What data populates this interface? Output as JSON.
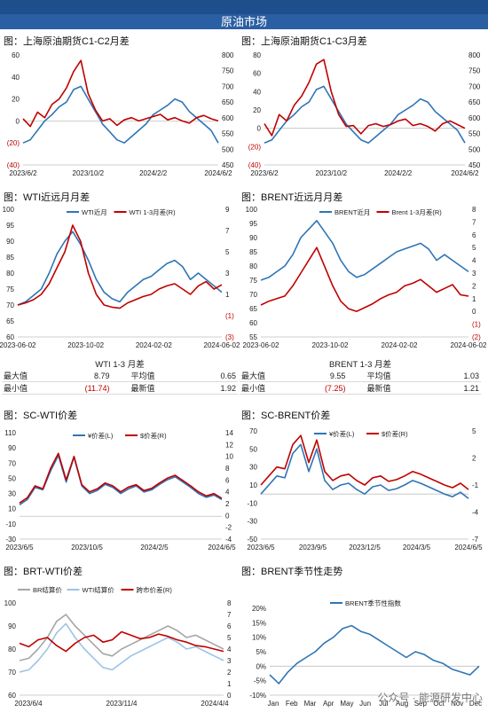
{
  "header": {
    "title": "原油市场"
  },
  "watermark": "公众号 · 能源研发中心",
  "panels": [
    {
      "title": "图：上海原油期货C1-C2月差"
    },
    {
      "title": "图：上海原油期货C1-C3月差"
    },
    {
      "title": "图：WTI近远月月差"
    },
    {
      "title": "图：BRENT近远月月差"
    },
    {
      "title": "图：SC-WTI价差"
    },
    {
      "title": "图：SC-BRENT价差"
    },
    {
      "title": "图：BRT-WTI价差"
    },
    {
      "title": "图：BRENT季节性走势"
    }
  ],
  "stats": [
    {
      "caption": "WTI 1-3 月差",
      "labels": [
        "最大值",
        "平均值",
        "最小值",
        "最新值"
      ],
      "values": [
        "8.79",
        "0.65",
        "(11.74)",
        "1.92"
      ]
    },
    {
      "caption": "BRENT 1-3 月差",
      "labels": [
        "最大值",
        "平均值",
        "最小值",
        "最新值"
      ],
      "values": [
        "9.55",
        "1.03",
        "(7.25)",
        "1.21"
      ]
    }
  ],
  "colors": {
    "blue": "#2e75b6",
    "red": "#c00000",
    "gray": "#a6a6a6",
    "lightblue": "#9dc3e6"
  },
  "chart_data": [
    {
      "type": "line",
      "title": "图：上海原油期货C1-C2月差",
      "x_ticks": [
        "2023/6/2",
        "2023/10/2",
        "2024/2/2",
        "2024/6/2"
      ],
      "y_left_ticks": [
        "60",
        "40",
        "20",
        "0",
        "(20)",
        "(40)"
      ],
      "y_left_range": [
        -40,
        60
      ],
      "y_right_ticks": [
        "800",
        "750",
        "700",
        "650",
        "600",
        "550",
        "500",
        "450"
      ],
      "y_right_range": [
        450,
        800
      ],
      "series": [
        {
          "axis": "right",
          "color": "blue",
          "values": [
            520,
            530,
            560,
            590,
            610,
            635,
            650,
            690,
            700,
            660,
            620,
            580,
            555,
            530,
            520,
            540,
            560,
            580,
            610,
            625,
            640,
            660,
            650,
            620,
            600,
            580,
            560,
            520
          ]
        },
        {
          "axis": "left",
          "color": "red",
          "values": [
            2,
            -5,
            8,
            3,
            15,
            20,
            30,
            45,
            55,
            25,
            10,
            0,
            2,
            -4,
            1,
            3,
            0,
            2,
            4,
            6,
            1,
            3,
            0,
            -2,
            3,
            5,
            2,
            0
          ]
        }
      ]
    },
    {
      "type": "line",
      "title": "图：上海原油期货C1-C3月差",
      "x_ticks": [
        "2023/6/2",
        "2023/10/2",
        "2024/2/2",
        "2024/6/2"
      ],
      "y_left_ticks": [
        "80",
        "60",
        "40",
        "20",
        "0",
        "(20)",
        "(40)"
      ],
      "y_left_range": [
        -40,
        80
      ],
      "y_right_ticks": [
        "800",
        "750",
        "700",
        "650",
        "600",
        "550",
        "500",
        "450"
      ],
      "y_right_range": [
        450,
        800
      ],
      "series": [
        {
          "axis": "right",
          "color": "blue",
          "values": [
            520,
            530,
            560,
            590,
            610,
            635,
            650,
            690,
            700,
            660,
            620,
            580,
            555,
            530,
            520,
            540,
            560,
            580,
            610,
            625,
            640,
            660,
            650,
            620,
            600,
            580,
            560,
            520
          ]
        },
        {
          "axis": "left",
          "color": "red",
          "values": [
            5,
            -8,
            15,
            8,
            25,
            35,
            50,
            70,
            75,
            40,
            15,
            2,
            3,
            -6,
            3,
            5,
            2,
            4,
            8,
            10,
            3,
            5,
            2,
            -3,
            5,
            8,
            4,
            0
          ]
        }
      ]
    },
    {
      "type": "line",
      "title": "图：WTI近远月月差",
      "legend": [
        "WTI近月",
        "WTI 1-3月差(R)"
      ],
      "x_ticks": [
        "2023-06-02",
        "2023-10-02",
        "2024-02-02",
        "2024-06-02"
      ],
      "y_left_ticks": [
        "100",
        "95",
        "90",
        "85",
        "80",
        "75",
        "70",
        "65",
        "60"
      ],
      "y_left_range": [
        60,
        100
      ],
      "y_right_ticks": [
        "9",
        "7",
        "5",
        "3",
        "1",
        "(1)",
        "(3)"
      ],
      "y_right_range": [
        -3,
        9
      ],
      "series": [
        {
          "name": "WTI近月",
          "axis": "left",
          "color": "blue",
          "values": [
            70,
            71,
            73,
            75,
            80,
            86,
            90,
            93,
            89,
            84,
            78,
            74,
            72,
            71,
            74,
            76,
            78,
            79,
            81,
            83,
            84,
            82,
            78,
            80,
            78,
            76,
            74
          ]
        },
        {
          "name": "WTI 1-3月差(R)",
          "axis": "right",
          "color": "red",
          "values": [
            0,
            0.2,
            0.5,
            1,
            2,
            3.5,
            5,
            7.5,
            6,
            3,
            1,
            0,
            -0.2,
            -0.3,
            0.2,
            0.5,
            0.8,
            1,
            1.5,
            1.8,
            2,
            1.5,
            1,
            1.8,
            2.2,
            1.5,
            1.9
          ]
        }
      ]
    },
    {
      "type": "line",
      "title": "图：BRENT近远月月差",
      "legend": [
        "BRENT近月",
        "Brent 1-3月差(R)"
      ],
      "x_ticks": [
        "2023-06-02",
        "2023-10-02",
        "2024-02-02",
        "2024-06-02"
      ],
      "y_left_ticks": [
        "100",
        "95",
        "90",
        "85",
        "80",
        "75",
        "70",
        "65",
        "60",
        "55"
      ],
      "y_left_range": [
        55,
        100
      ],
      "y_right_ticks": [
        "8",
        "7",
        "6",
        "5",
        "4",
        "3",
        "2",
        "1",
        "0",
        "(1)",
        "(2)"
      ],
      "y_right_range": [
        -2,
        8
      ],
      "series": [
        {
          "name": "BRENT近月",
          "axis": "left",
          "color": "blue",
          "values": [
            75,
            76,
            78,
            80,
            84,
            90,
            93,
            96,
            92,
            88,
            82,
            78,
            76,
            77,
            79,
            81,
            83,
            85,
            86,
            87,
            88,
            86,
            82,
            84,
            82,
            80,
            78
          ]
        },
        {
          "name": "Brent 1-3月差(R)",
          "axis": "right",
          "color": "red",
          "values": [
            0.5,
            0.8,
            1,
            1.2,
            2,
            3,
            4,
            5,
            3.5,
            2,
            0.8,
            0.2,
            0,
            0.3,
            0.6,
            1,
            1.3,
            1.5,
            2,
            2.2,
            2.5,
            2,
            1.5,
            1.8,
            2.1,
            1.3,
            1.2
          ]
        }
      ]
    },
    {
      "type": "line",
      "title": "图：SC-WTI价差",
      "legend": [
        "¥价差(L)",
        "$价差(R)"
      ],
      "x_ticks": [
        "2023/6/5",
        "2023/10/5",
        "2024/2/5",
        "2024/6/5"
      ],
      "y_left_ticks": [
        "110",
        "90",
        "70",
        "50",
        "30",
        "10",
        "-10",
        "-30"
      ],
      "y_left_range": [
        -30,
        110
      ],
      "y_right_ticks": [
        "14",
        "12",
        "10",
        "8",
        "6",
        "4",
        "2",
        "0",
        "-2",
        "-4"
      ],
      "y_right_range": [
        -4,
        14
      ],
      "series": [
        {
          "name": "¥价差(L)",
          "axis": "left",
          "color": "blue",
          "values": [
            15,
            22,
            38,
            35,
            60,
            80,
            45,
            78,
            40,
            30,
            34,
            42,
            38,
            30,
            36,
            40,
            32,
            35,
            42,
            48,
            52,
            45,
            38,
            30,
            25,
            28,
            22
          ]
        },
        {
          "name": "$价差(R)",
          "axis": "right",
          "color": "red",
          "values": [
            2.1,
            3,
            5,
            4.5,
            8,
            10.5,
            6,
            10,
            5.2,
            4,
            4.5,
            5.5,
            5,
            4,
            4.8,
            5.2,
            4.2,
            4.6,
            5.5,
            6.3,
            6.8,
            5.9,
            5,
            4,
            3.3,
            3.7,
            2.9
          ]
        }
      ]
    },
    {
      "type": "line",
      "title": "图：SC-BRENT价差",
      "legend": [
        "¥价差(L)",
        "$价差(R)"
      ],
      "x_ticks": [
        "2023/6/5",
        "2023/9/5",
        "2023/12/5",
        "2024/3/5",
        "2024/6/5"
      ],
      "y_left_ticks": [
        "70",
        "50",
        "30",
        "10",
        "-10",
        "-30",
        "-50"
      ],
      "y_left_range": [
        -50,
        70
      ],
      "y_right_ticks": [
        "5",
        "2",
        "-1",
        "-4",
        "-7"
      ],
      "y_right_range": [
        -7,
        5
      ],
      "series": [
        {
          "name": "¥价差(L)",
          "axis": "left",
          "color": "blue",
          "values": [
            0,
            10,
            20,
            18,
            45,
            55,
            25,
            50,
            15,
            5,
            10,
            12,
            5,
            0,
            8,
            10,
            4,
            6,
            10,
            15,
            12,
            8,
            4,
            0,
            -3,
            2,
            -5
          ]
        },
        {
          "name": "$价差(R)",
          "axis": "right",
          "color": "red",
          "values": [
            -1,
            0,
            1,
            0.8,
            3.5,
            4.5,
            1.5,
            4,
            0.5,
            -0.5,
            0,
            0.2,
            -0.5,
            -1,
            -0.2,
            0,
            -0.6,
            -0.4,
            0,
            0.5,
            0.2,
            -0.2,
            -0.6,
            -1,
            -1.3,
            -0.8,
            -1.5
          ]
        }
      ]
    },
    {
      "type": "line",
      "title": "图：BRT-WTI价差",
      "legend": [
        "BR结算价",
        "WTI结算价",
        "跨市价差(R)"
      ],
      "x_ticks": [
        "2023/6/4",
        "2023/11/4",
        "2024/4/4"
      ],
      "y_left_ticks": [
        "100",
        "90",
        "80",
        "70",
        "60"
      ],
      "y_left_range": [
        60,
        100
      ],
      "y_right_ticks": [
        "8",
        "7",
        "6",
        "5",
        "4",
        "3",
        "2",
        "1",
        "0"
      ],
      "y_right_range": [
        0,
        8
      ],
      "series": [
        {
          "name": "BR结算价",
          "axis": "left",
          "color": "gray",
          "values": [
            75,
            76,
            80,
            85,
            92,
            95,
            90,
            86,
            82,
            78,
            77,
            80,
            82,
            84,
            86,
            88,
            90,
            88,
            85,
            86,
            84,
            82,
            80
          ]
        },
        {
          "name": "WTI结算价",
          "axis": "left",
          "color": "lightblue",
          "values": [
            70,
            71,
            75,
            80,
            87,
            91,
            85,
            80,
            76,
            72,
            71,
            74,
            77,
            79,
            81,
            83,
            85,
            83,
            80,
            81,
            79,
            77,
            75
          ]
        },
        {
          "name": "跨市价差(R)",
          "axis": "right",
          "color": "red",
          "values": [
            4.5,
            4.2,
            4.8,
            5,
            4.3,
            3.8,
            4.5,
            5,
            5.2,
            4.6,
            4.8,
            5.5,
            5.2,
            4.9,
            5,
            5.3,
            5.1,
            4.8,
            4.6,
            4.3,
            4.2,
            4.0,
            3.8
          ]
        }
      ]
    },
    {
      "type": "line",
      "title": "图：BRENT季节性走势",
      "legend": [
        "BRENT季节性指数"
      ],
      "x_ticks": [
        "Jan",
        "Feb",
        "Mar",
        "Apr",
        "May",
        "Jun",
        "Jul",
        "Aug",
        "Sep",
        "Oct",
        "Nov",
        "Dec"
      ],
      "y_left_ticks": [
        "20%",
        "15%",
        "10%",
        "5%",
        "0%",
        "-5%",
        "-10%"
      ],
      "y_left_range": [
        -10,
        20
      ],
      "series": [
        {
          "name": "BRENT季节性指数",
          "axis": "left",
          "color": "blue",
          "values": [
            -3,
            -6,
            -2,
            1,
            3,
            5,
            8,
            10,
            13,
            14,
            12,
            11,
            9,
            7,
            5,
            3,
            5,
            4,
            2,
            1,
            -1,
            -2,
            -3,
            0
          ]
        }
      ]
    }
  ]
}
